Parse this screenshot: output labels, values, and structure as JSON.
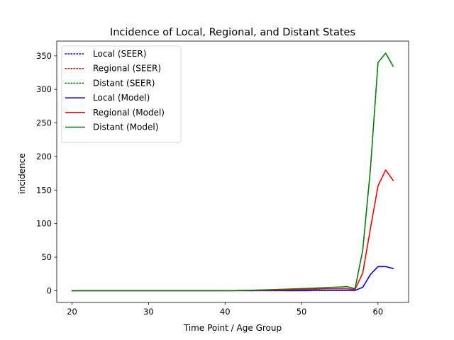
{
  "chart_data": {
    "type": "line",
    "title": "Incidence of Local, Regional, and Distant States",
    "xlabel": "Time Point / Age Group",
    "ylabel": "incidence",
    "xlim": [
      18,
      64
    ],
    "ylim": [
      -17.5,
      372
    ],
    "xticks": [
      20,
      30,
      40,
      50,
      60
    ],
    "xtick_labels": [
      "20",
      "30",
      "40",
      "50",
      "60"
    ],
    "yticks": [
      0,
      50,
      100,
      150,
      200,
      250,
      300,
      350
    ],
    "ytick_labels": [
      "0",
      "50",
      "100",
      "150",
      "200",
      "250",
      "300",
      "350"
    ],
    "grid": false,
    "legend_position": "top-left",
    "x": [
      20,
      21,
      22,
      23,
      24,
      25,
      26,
      27,
      28,
      29,
      30,
      31,
      32,
      33,
      34,
      35,
      36,
      37,
      38,
      39,
      40,
      41,
      42,
      43,
      44,
      45,
      46,
      47,
      48,
      49,
      50,
      51,
      52,
      53,
      54,
      55,
      56,
      57,
      58,
      59,
      60,
      61,
      62
    ],
    "series": [
      {
        "name": "Local (SEER)",
        "color": "#0000ff",
        "dash": "dotted",
        "values": [
          0,
          0,
          0,
          0,
          0,
          0,
          0,
          0,
          0,
          0,
          0,
          0,
          0,
          0,
          0,
          0,
          0,
          0,
          0,
          0,
          0,
          0,
          0,
          0,
          0,
          0,
          0,
          0,
          0,
          0,
          0,
          0,
          0.5,
          0.5,
          0.5,
          0.5,
          0.5,
          0.5,
          5,
          24,
          36,
          36,
          33
        ]
      },
      {
        "name": "Regional (SEER)",
        "color": "#ff0000",
        "dash": "dotted",
        "values": [
          0,
          0,
          0,
          0,
          0,
          0,
          0,
          0,
          0,
          0,
          0,
          0,
          0,
          0,
          0,
          0,
          0,
          0,
          0,
          0,
          0,
          0.1,
          0.2,
          0.3,
          0.4,
          0.5,
          0.7,
          0.9,
          1.1,
          1.4,
          1.7,
          2,
          2.4,
          2.8,
          2.8,
          2.8,
          2.8,
          2,
          26,
          92,
          156,
          180,
          164
        ]
      },
      {
        "name": "Distant (SEER)",
        "color": "#008000",
        "dash": "dotted",
        "values": [
          0,
          0,
          0,
          0,
          0,
          0,
          0,
          0,
          0,
          0,
          0,
          0,
          0,
          0,
          0,
          0,
          0,
          0,
          0,
          0,
          0,
          0.2,
          0.4,
          0.6,
          0.9,
          1.2,
          1.5,
          1.9,
          2.3,
          2.7,
          3.1,
          3.5,
          4,
          4.5,
          5,
          5.5,
          6,
          3,
          60,
          180,
          340,
          354,
          334
        ]
      },
      {
        "name": "Local (Model)",
        "color": "#0000ff",
        "dash": "solid",
        "values": [
          0,
          0,
          0,
          0,
          0,
          0,
          0,
          0,
          0,
          0,
          0,
          0,
          0,
          0,
          0,
          0,
          0,
          0,
          0,
          0,
          0,
          0,
          0,
          0,
          0,
          0,
          0,
          0,
          0,
          0,
          0,
          0,
          0.5,
          0.5,
          0.5,
          0.5,
          0.5,
          0.5,
          5,
          24,
          36,
          36,
          33
        ]
      },
      {
        "name": "Regional (Model)",
        "color": "#ff0000",
        "dash": "solid",
        "values": [
          0,
          0,
          0,
          0,
          0,
          0,
          0,
          0,
          0,
          0,
          0,
          0,
          0,
          0,
          0,
          0,
          0,
          0,
          0,
          0,
          0,
          0.1,
          0.2,
          0.3,
          0.4,
          0.5,
          0.7,
          0.9,
          1.1,
          1.4,
          1.7,
          2,
          2.4,
          2.8,
          2.8,
          2.8,
          2.8,
          2,
          26,
          92,
          156,
          180,
          164
        ]
      },
      {
        "name": "Distant (Model)",
        "color": "#008000",
        "dash": "solid",
        "values": [
          0,
          0,
          0,
          0,
          0,
          0,
          0,
          0,
          0,
          0,
          0,
          0,
          0,
          0,
          0,
          0,
          0,
          0,
          0,
          0,
          0,
          0.2,
          0.4,
          0.6,
          0.9,
          1.2,
          1.5,
          1.9,
          2.3,
          2.7,
          3.1,
          3.5,
          4,
          4.5,
          5,
          5.5,
          6,
          3,
          60,
          180,
          340,
          354,
          334
        ]
      }
    ]
  }
}
